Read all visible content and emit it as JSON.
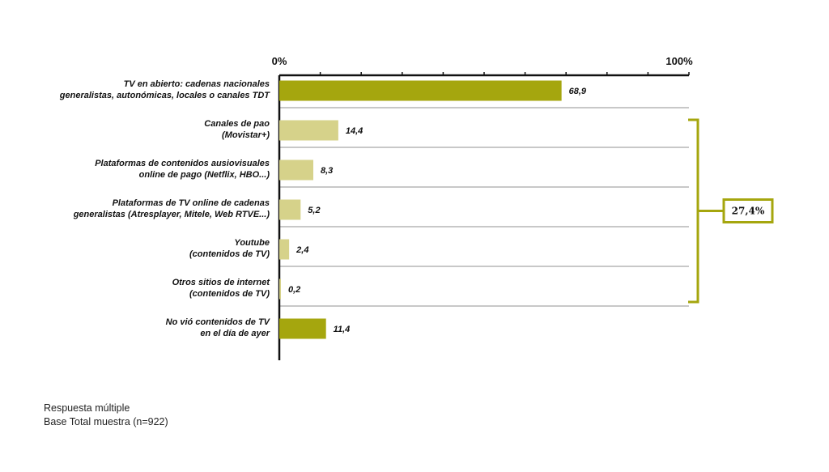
{
  "chart_data": {
    "type": "bar",
    "orientation": "horizontal",
    "xlim": [
      0,
      100
    ],
    "axis_tick_labels": [
      "0%",
      "100%"
    ],
    "categories": [
      [
        "TV en abierto: cadenas nacionales",
        "generalistas, autonómicas, locales o canales TDT"
      ],
      [
        "Canales de pao",
        "(Movistar+)"
      ],
      [
        "Plataformas de contenidos ausiovisuales",
        "online de pago (Netflix, HBO...)"
      ],
      [
        "Plataformas de TV online de cadenas",
        "generalistas (Atresplayer, Mitele, Web RTVE...)"
      ],
      [
        "Youtube",
        "(contenidos de TV)"
      ],
      [
        "Otros sitios de internet",
        "(contenidos de TV)"
      ],
      [
        "No vió contenidos de TV",
        "en el día de ayer"
      ]
    ],
    "values": [
      68.9,
      14.4,
      8.3,
      5.2,
      2.4,
      0.2,
      11.4
    ],
    "value_labels": [
      "68,9",
      "14,4",
      "8,3",
      "5,2",
      "2,4",
      "0,2",
      "11,4"
    ],
    "bar_colors": [
      "#a5a60e",
      "#d6d28a",
      "#d6d28a",
      "#d6d28a",
      "#d6d28a",
      "#d6d28a",
      "#a5a60e"
    ],
    "group_bracket": {
      "from_index": 1,
      "to_index": 5,
      "label": "27,4%",
      "color": "#a5a60e"
    },
    "grid": false
  },
  "notes": {
    "line1": "Respuesta múltiple",
    "line2": "Base Total muestra (n=922)"
  }
}
